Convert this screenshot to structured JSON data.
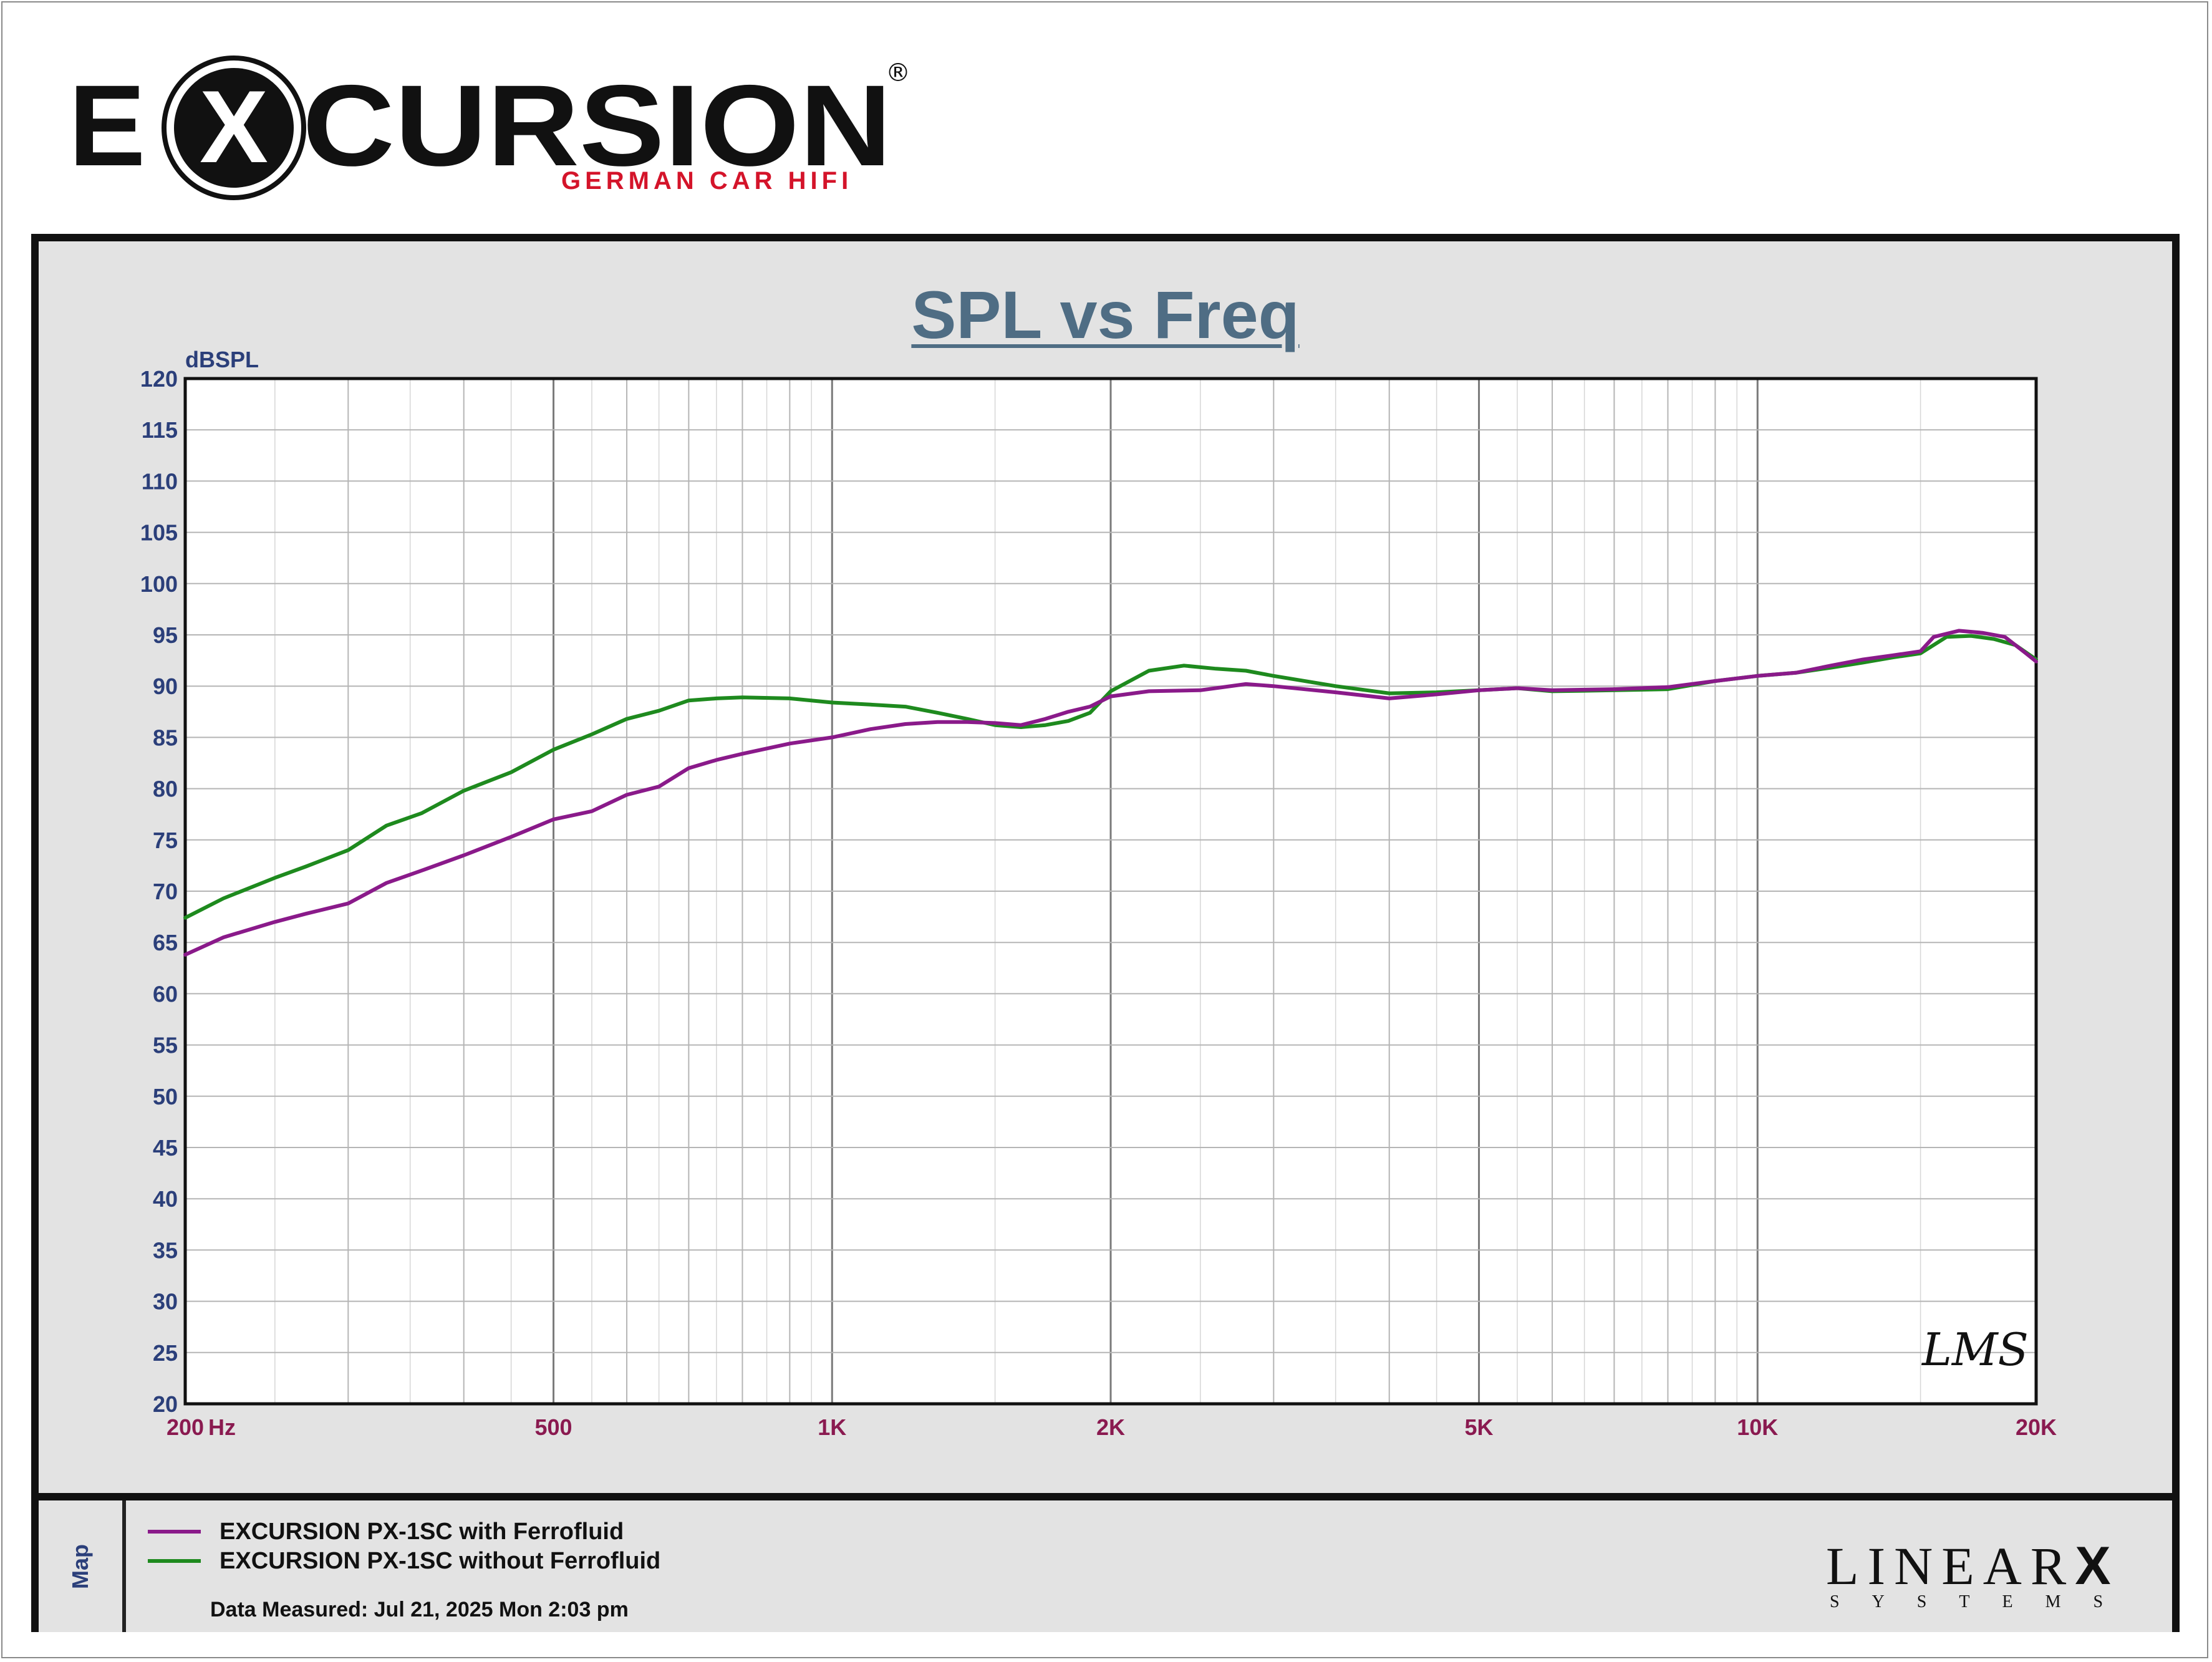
{
  "brand": {
    "name": "EXCURSION",
    "registered": "®",
    "tagline": "GERMAN CAR HIFI"
  },
  "colors": {
    "series_with_ferrofluid": "#8a1a8a",
    "series_without_ferrofluid": "#1e8a1e",
    "title": "#4f6d84",
    "axis_labels": "#2b3f7a",
    "x_axis_labels": "#8a1a50"
  },
  "chart_data": {
    "type": "line",
    "title": "SPL vs Freq",
    "ylabel": "dBSPL",
    "xlabel": "Hz",
    "x_scale": "log",
    "xlim": [
      200,
      20000
    ],
    "ylim": [
      20,
      120
    ],
    "grid": true,
    "x_tick_labels": [
      {
        "value": 200,
        "label": "200"
      },
      {
        "value": 500,
        "label": "500"
      },
      {
        "value": 1000,
        "label": "1K"
      },
      {
        "value": 2000,
        "label": "2K"
      },
      {
        "value": 5000,
        "label": "5K"
      },
      {
        "value": 10000,
        "label": "10K"
      },
      {
        "value": 20000,
        "label": "20K"
      }
    ],
    "y_ticks": [
      20,
      25,
      30,
      35,
      40,
      45,
      50,
      55,
      60,
      65,
      70,
      75,
      80,
      85,
      90,
      95,
      100,
      105,
      110,
      115,
      120
    ],
    "series": [
      {
        "name": "EXCURSION PX-1SC with Ferrofluid",
        "color": "#8a1a8a",
        "points": [
          [
            200,
            63.8
          ],
          [
            220,
            65.5
          ],
          [
            250,
            67.0
          ],
          [
            270,
            67.8
          ],
          [
            300,
            68.8
          ],
          [
            330,
            70.8
          ],
          [
            360,
            72.0
          ],
          [
            400,
            73.5
          ],
          [
            450,
            75.3
          ],
          [
            500,
            77.0
          ],
          [
            550,
            77.8
          ],
          [
            600,
            79.4
          ],
          [
            650,
            80.2
          ],
          [
            700,
            82.0
          ],
          [
            750,
            82.8
          ],
          [
            800,
            83.4
          ],
          [
            900,
            84.4
          ],
          [
            1000,
            85.0
          ],
          [
            1100,
            85.8
          ],
          [
            1200,
            86.3
          ],
          [
            1300,
            86.5
          ],
          [
            1400,
            86.5
          ],
          [
            1500,
            86.4
          ],
          [
            1600,
            86.2
          ],
          [
            1700,
            86.8
          ],
          [
            1800,
            87.5
          ],
          [
            1900,
            88.0
          ],
          [
            2000,
            89.0
          ],
          [
            2200,
            89.5
          ],
          [
            2500,
            89.6
          ],
          [
            2800,
            90.2
          ],
          [
            3000,
            90.0
          ],
          [
            3500,
            89.4
          ],
          [
            4000,
            88.8
          ],
          [
            4500,
            89.2
          ],
          [
            5000,
            89.6
          ],
          [
            5500,
            89.8
          ],
          [
            6000,
            89.6
          ],
          [
            7000,
            89.7
          ],
          [
            8000,
            89.9
          ],
          [
            9000,
            90.5
          ],
          [
            10000,
            91.0
          ],
          [
            11000,
            91.3
          ],
          [
            12000,
            92.0
          ],
          [
            13000,
            92.6
          ],
          [
            14000,
            93.0
          ],
          [
            15000,
            93.4
          ],
          [
            15500,
            94.8
          ],
          [
            16500,
            95.4
          ],
          [
            17500,
            95.2
          ],
          [
            18500,
            94.8
          ],
          [
            19500,
            93.2
          ],
          [
            20000,
            92.4
          ]
        ]
      },
      {
        "name": "EXCURSION PX-1SC without Ferrofluid",
        "color": "#1e8a1e",
        "points": [
          [
            200,
            67.4
          ],
          [
            220,
            69.3
          ],
          [
            250,
            71.3
          ],
          [
            270,
            72.4
          ],
          [
            300,
            74.0
          ],
          [
            330,
            76.4
          ],
          [
            360,
            77.6
          ],
          [
            400,
            79.8
          ],
          [
            450,
            81.6
          ],
          [
            500,
            83.8
          ],
          [
            550,
            85.3
          ],
          [
            600,
            86.8
          ],
          [
            650,
            87.6
          ],
          [
            700,
            88.6
          ],
          [
            750,
            88.8
          ],
          [
            800,
            88.9
          ],
          [
            900,
            88.8
          ],
          [
            1000,
            88.4
          ],
          [
            1100,
            88.2
          ],
          [
            1200,
            88.0
          ],
          [
            1300,
            87.4
          ],
          [
            1400,
            86.8
          ],
          [
            1500,
            86.2
          ],
          [
            1600,
            86.0
          ],
          [
            1700,
            86.2
          ],
          [
            1800,
            86.6
          ],
          [
            1900,
            87.4
          ],
          [
            2000,
            89.5
          ],
          [
            2200,
            91.5
          ],
          [
            2400,
            92.0
          ],
          [
            2600,
            91.7
          ],
          [
            2800,
            91.5
          ],
          [
            3000,
            91.0
          ],
          [
            3500,
            90.0
          ],
          [
            4000,
            89.3
          ],
          [
            4500,
            89.4
          ],
          [
            5000,
            89.6
          ],
          [
            5500,
            89.8
          ],
          [
            6000,
            89.5
          ],
          [
            7000,
            89.6
          ],
          [
            8000,
            89.7
          ],
          [
            9000,
            90.5
          ],
          [
            10000,
            91.0
          ],
          [
            11000,
            91.3
          ],
          [
            12000,
            91.8
          ],
          [
            13000,
            92.3
          ],
          [
            14000,
            92.8
          ],
          [
            15000,
            93.2
          ],
          [
            16000,
            94.8
          ],
          [
            17000,
            94.9
          ],
          [
            18000,
            94.6
          ],
          [
            19000,
            94.0
          ],
          [
            20000,
            92.6
          ]
        ]
      }
    ]
  },
  "legend": {
    "map_label": "Map",
    "items": [
      {
        "label": "EXCURSION PX-1SC with Ferrofluid",
        "color": "#8a1a8a"
      },
      {
        "label": "EXCURSION PX-1SC without Ferrofluid",
        "color": "#1e8a1e"
      }
    ],
    "data_measured": "Data Measured: Jul 21, 2025  Mon  2:03 pm"
  },
  "watermark": {
    "lms": "LMS",
    "linearx_main": "LINEAR",
    "linearx_x": "X",
    "linearx_sub": "SYSTEMS"
  }
}
